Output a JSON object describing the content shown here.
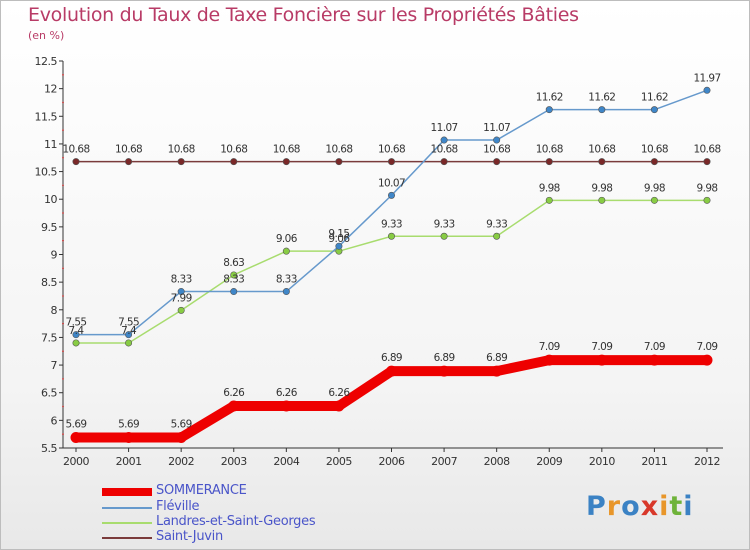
{
  "title": "Evolution du Taux de Taxe Foncière sur les Propriétés Bâties",
  "unit_label": "(en %)",
  "logo": {
    "text": "Proxiti",
    "letters": [
      {
        "ch": "P",
        "color": "#3b82c4"
      },
      {
        "ch": "r",
        "color": "#e8962a"
      },
      {
        "ch": "o",
        "color": "#3b82c4"
      },
      {
        "ch": "x",
        "color": "#d8382a"
      },
      {
        "ch": "i",
        "color": "#e8962a"
      },
      {
        "ch": "t",
        "color": "#6fb33a"
      },
      {
        "ch": "i",
        "color": "#3b82c4"
      }
    ]
  },
  "chart_data": {
    "type": "line",
    "title": "Evolution du Taux de Taxe Foncière sur les Propriétés Bâties",
    "ylabel": "(en %)",
    "x": [
      2000,
      2001,
      2002,
      2003,
      2004,
      2005,
      2006,
      2007,
      2008,
      2009,
      2010,
      2011,
      2012
    ],
    "ylim": [
      5.5,
      12.5
    ],
    "yticks": [
      5.5,
      6,
      6.5,
      7,
      7.5,
      8,
      8.5,
      9,
      9.5,
      10,
      10.5,
      11,
      11.5,
      12,
      12.5
    ],
    "grid": false,
    "legend_position": "bottom-left",
    "series": [
      {
        "name": "SOMMERANCE",
        "color": "#ee0000",
        "highlight": true,
        "values": [
          5.69,
          5.69,
          5.69,
          6.26,
          6.26,
          6.26,
          6.89,
          6.89,
          6.89,
          7.09,
          7.09,
          7.09,
          7.09
        ],
        "labels": [
          "5.69",
          "5.69",
          "5.69",
          "6.26",
          "6.26",
          "6.26",
          "6.89",
          "6.89",
          "6.89",
          "7.09",
          "7.09",
          "7.09",
          "7.09"
        ]
      },
      {
        "name": "Fléville",
        "color": "#6699cc",
        "marker": "#3f86c8",
        "values": [
          7.55,
          7.55,
          8.33,
          8.33,
          8.33,
          9.15,
          10.07,
          11.07,
          11.07,
          11.62,
          11.62,
          11.62,
          11.97
        ],
        "labels": [
          "7.55",
          "7.55",
          "8.33",
          "8.33",
          "8.33",
          "9.15",
          "10.07",
          "11.07",
          "11.07",
          "11.62",
          "11.62",
          "11.62",
          "11.97"
        ]
      },
      {
        "name": "Landres-et-Saint-Georges",
        "color": "#a8dc6e",
        "marker": "#88cc44",
        "values": [
          7.4,
          7.4,
          7.99,
          8.63,
          9.06,
          9.06,
          9.33,
          9.33,
          9.33,
          9.98,
          9.98,
          9.98,
          9.98
        ],
        "labels": [
          "7.4",
          "7.4",
          "7.99",
          "8.63",
          "9.06",
          "9.06",
          "9.33",
          "9.33",
          "9.33",
          "9.98",
          "9.98",
          "9.98",
          "9.98"
        ]
      },
      {
        "name": "Saint-Juvin",
        "color": "#7a3b3b",
        "marker": "#7a2828",
        "values": [
          10.68,
          10.68,
          10.68,
          10.68,
          10.68,
          10.68,
          10.68,
          10.68,
          10.68,
          10.68,
          10.68,
          10.68,
          10.68
        ],
        "labels": [
          "10.68",
          "10.68",
          "10.68",
          "10.68",
          "10.68",
          "10.68",
          "10.68",
          "10.68",
          "10.68",
          "10.68",
          "10.68",
          "10.68",
          "10.68"
        ]
      }
    ]
  }
}
